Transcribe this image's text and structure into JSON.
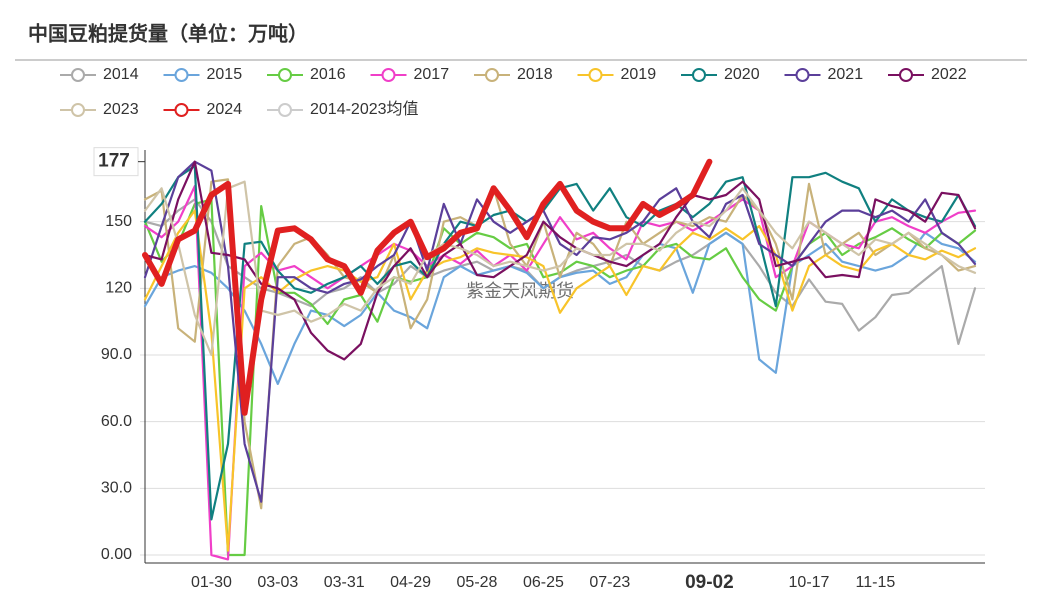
{
  "chart_data": {
    "type": "line",
    "title": "中国豆粕提货量（单位：万吨）",
    "watermark": "紫金天风期货",
    "categories": [
      null,
      null,
      null,
      null,
      "01-30",
      null,
      null,
      null,
      "03-03",
      null,
      null,
      null,
      "03-31",
      null,
      null,
      null,
      "04-29",
      null,
      null,
      null,
      "05-28",
      null,
      null,
      null,
      "06-25",
      null,
      null,
      null,
      "07-23",
      null,
      null,
      null,
      null,
      null,
      "09-02",
      null,
      null,
      null,
      null,
      null,
      "10-17",
      null,
      null,
      null,
      "11-15",
      null,
      null,
      null,
      null,
      null,
      null
    ],
    "ylim": [
      0,
      180
    ],
    "yticks": [
      {
        "value": 0,
        "label": "0.00"
      },
      {
        "value": 30,
        "label": "30.0"
      },
      {
        "value": 60,
        "label": "60.0"
      },
      {
        "value": 90,
        "label": "90.0"
      },
      120,
      150
    ],
    "grid": true,
    "highlight": {
      "x": "09-02",
      "y": 177
    },
    "series": [
      {
        "name": "2014",
        "color": "#aaaaaa",
        "values": [
          150,
          148,
          155,
          160,
          150,
          130,
          125,
          120,
          118,
          115,
          112,
          118,
          120,
          125,
          118,
          122,
          130,
          125,
          128,
          130,
          132,
          128,
          130,
          128,
          120,
          125,
          128,
          130,
          132,
          135,
          130,
          128,
          132,
          135,
          140,
          145,
          140,
          130,
          118,
          112,
          124,
          114,
          113,
          101,
          107,
          117,
          118,
          124,
          130,
          95,
          120
        ]
      },
      {
        "name": "2015",
        "color": "#6aa5dc",
        "values": [
          112,
          125,
          128,
          130,
          127,
          120,
          110,
          95,
          77,
          95,
          110,
          108,
          103,
          108,
          118,
          110,
          107,
          102,
          125,
          130,
          126,
          128,
          130,
          127,
          120,
          125,
          127,
          128,
          122,
          125,
          135,
          140,
          138,
          118,
          140,
          145,
          140,
          88,
          82,
          130,
          135,
          140,
          132,
          130,
          128,
          130,
          135,
          145,
          140,
          138,
          132
        ]
      },
      {
        "name": "2016",
        "color": "#66cc44",
        "values": [
          150,
          132,
          140,
          158,
          160,
          0,
          0,
          157,
          118,
          118,
          113,
          104,
          115,
          117,
          105,
          125,
          123,
          125,
          147,
          140,
          145,
          143,
          138,
          140,
          125,
          127,
          132,
          130,
          125,
          128,
          130,
          138,
          140,
          134,
          133,
          138,
          125,
          115,
          110,
          130,
          140,
          145,
          135,
          140,
          143,
          147,
          142,
          138,
          145,
          140,
          146
        ]
      },
      {
        "name": "2017",
        "color": "#f03fc8",
        "values": [
          148,
          143,
          150,
          166,
          0,
          -2,
          130,
          136,
          128,
          130,
          125,
          120,
          125,
          130,
          135,
          140,
          137,
          130,
          135,
          131,
          137,
          130,
          135,
          128,
          140,
          152,
          142,
          145,
          138,
          133,
          150,
          148,
          150,
          146,
          150,
          155,
          160,
          155,
          125,
          130,
          150,
          145,
          140,
          138,
          150,
          152,
          148,
          145,
          150,
          154,
          155
        ]
      },
      {
        "name": "2018",
        "color": "#c8b27a",
        "values": [
          160,
          164,
          102,
          96,
          168,
          169,
          60,
          21,
          130,
          140,
          143,
          135,
          125,
          123,
          118,
          135,
          102,
          115,
          150,
          152,
          148,
          165,
          140,
          130,
          150,
          125,
          145,
          140,
          130,
          150,
          140,
          145,
          150,
          148,
          152,
          150,
          162,
          155,
          140,
          115,
          167,
          135,
          140,
          145,
          135,
          140,
          145,
          138,
          135,
          128,
          130
        ]
      },
      {
        "name": "2019",
        "color": "#f8c42a",
        "values": [
          115,
          130,
          145,
          155,
          100,
          2,
          120,
          125,
          118,
          124,
          128,
          130,
          128,
          123,
          125,
          140,
          115,
          128,
          132,
          134,
          138,
          136,
          135,
          134,
          130,
          109,
          120,
          125,
          130,
          117,
          130,
          128,
          138,
          145,
          142,
          147,
          142,
          148,
          135,
          110,
          130,
          135,
          130,
          128,
          137,
          140,
          135,
          133,
          137,
          134,
          138
        ]
      },
      {
        "name": "2020",
        "color": "#108080",
        "values": [
          150,
          158,
          170,
          175,
          16,
          50,
          140,
          141,
          128,
          120,
          118,
          122,
          125,
          130,
          122,
          130,
          132,
          125,
          140,
          150,
          148,
          153,
          155,
          150,
          155,
          165,
          167,
          155,
          165,
          152,
          148,
          155,
          158,
          152,
          158,
          168,
          170,
          142,
          112,
          170,
          170,
          172,
          168,
          165,
          150,
          160,
          155,
          152,
          150,
          162,
          148
        ]
      },
      {
        "name": "2021",
        "color": "#5b3f9a",
        "values": [
          125,
          148,
          170,
          177,
          173,
          130,
          50,
          24,
          125,
          125,
          120,
          118,
          122,
          124,
          130,
          135,
          150,
          128,
          158,
          140,
          160,
          150,
          145,
          150,
          155,
          140,
          135,
          143,
          142,
          145,
          150,
          160,
          165,
          150,
          143,
          158,
          162,
          140,
          135,
          130,
          140,
          150,
          155,
          155,
          152,
          155,
          150,
          160,
          145,
          140,
          131
        ]
      },
      {
        "name": "2022",
        "color": "#7a1060",
        "values": [
          135,
          133,
          160,
          177,
          136,
          135,
          133,
          122,
          120,
          115,
          100,
          92,
          88,
          95,
          118,
          130,
          138,
          125,
          135,
          140,
          126,
          125,
          130,
          135,
          150,
          143,
          138,
          135,
          132,
          130,
          135,
          140,
          152,
          162,
          160,
          162,
          168,
          160,
          130,
          132,
          134,
          125,
          126,
          125,
          160,
          157,
          155,
          150,
          163,
          162,
          147
        ]
      },
      {
        "name": "2023",
        "color": "#cfc4a8",
        "values": [
          155,
          165,
          140,
          108,
          90,
          165,
          168,
          110,
          108,
          110,
          105,
          108,
          113,
          110,
          120,
          125,
          122,
          135,
          140,
          138,
          135,
          130,
          132,
          130,
          128,
          130,
          138,
          135,
          135,
          140,
          140,
          137,
          145,
          150,
          148,
          155,
          165,
          155,
          145,
          138,
          150,
          145,
          140,
          135,
          142,
          140,
          145,
          140,
          135,
          130,
          127
        ]
      },
      {
        "name": "2024",
        "color": "#e02020",
        "values": [
          135,
          122,
          142,
          146,
          162,
          167,
          64,
          115,
          146,
          147,
          142,
          133,
          130,
          118,
          137,
          145,
          150,
          134,
          138,
          145,
          147,
          165,
          155,
          143,
          158,
          167,
          155,
          150,
          147,
          147,
          158,
          153,
          157,
          162,
          177,
          null,
          null,
          null,
          null,
          null,
          null,
          null,
          null,
          null,
          null,
          null,
          null,
          null,
          null,
          null,
          null
        ]
      },
      {
        "name": "2014-2023均值",
        "color": "#cccccc",
        "visible": false
      }
    ]
  }
}
